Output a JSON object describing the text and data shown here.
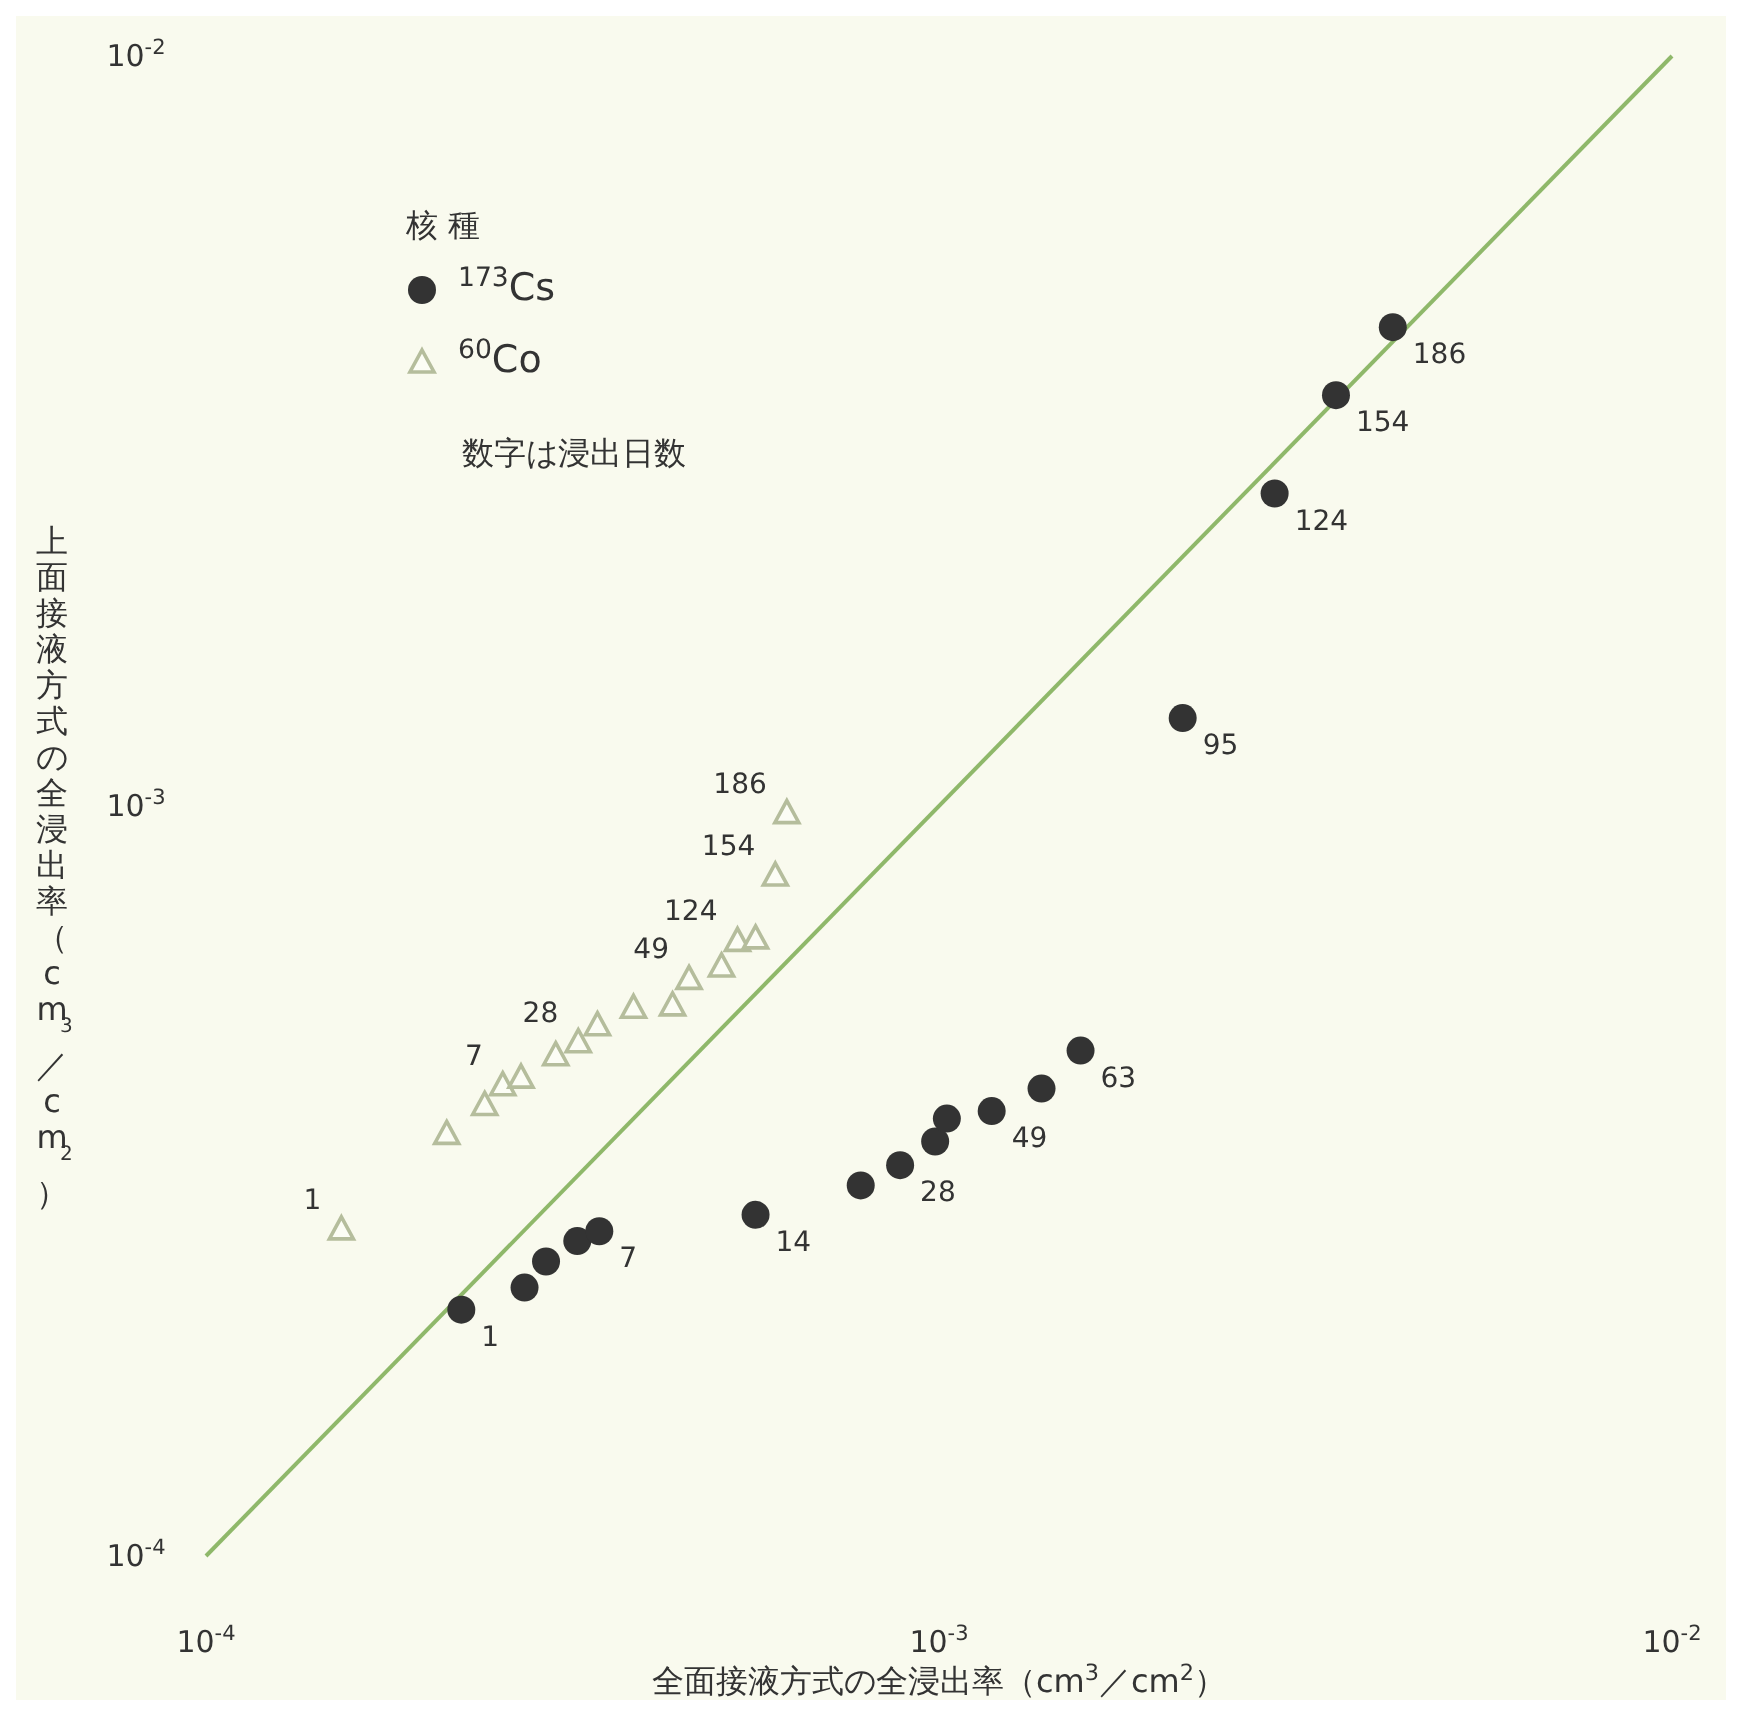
{
  "chart_data": {
    "type": "scatter",
    "log": "xy",
    "xlabel": "全面接液方式の全浸出率（cm$^{3}$／cm$^{2}$）",
    "ylabel": "上面接液方式の全浸出率（cm$^{3}$／cm$^{2}$）",
    "legend_title": "核 種",
    "legend": "top left",
    "xlim": [
      0.0001,
      0.01
    ],
    "ylim": [
      0.0001,
      0.01
    ],
    "xticks": [
      {
        "value": 0.0001,
        "label": "10$^{-4}$"
      },
      {
        "value": 0.001,
        "label": "10$^{-3}$"
      },
      {
        "value": 0.01,
        "label": "10$^{-2}$"
      }
    ],
    "yticks": [
      {
        "value": 0.0001,
        "label": "10$^{-4}$"
      },
      {
        "value": 0.001,
        "label": "10$^{-3}$"
      },
      {
        "value": 0.01,
        "label": "10$^{-2}$"
      }
    ],
    "series": [
      {
        "type": "line",
        "color": "#8fb86a",
        "line_style": "solid",
        "marker": "none",
        "x": [
          0.0001,
          0.01
        ],
        "values": [
          0.0001,
          0.01
        ]
      },
      {
        "name": "$^{173}$Cs",
        "color": "#333333",
        "marker": "circle",
        "x": [
          0.000223,
          0.000272,
          0.000291,
          0.000321,
          0.000344,
          0.000562,
          0.000782,
          0.000885,
          0.000988,
          0.001025,
          0.00118,
          0.00138,
          0.00156,
          0.00215,
          0.00287,
          0.00348,
          0.00416
        ],
        "values": [
          0.000213,
          0.000228,
          0.000247,
          0.000263,
          0.000271,
          0.000285,
          0.000312,
          0.000332,
          0.000357,
          0.000383,
          0.000392,
          0.00042,
          0.000472,
          0.00131,
          0.00261,
          0.00353,
          0.00435
        ]
      },
      {
        "name": "$^{60}$Co",
        "color": "#b5bd9c",
        "marker": "triangle",
        "x": [
          0.000153,
          0.000213,
          0.00024,
          0.000254,
          0.000269,
          0.0003,
          0.000322,
          0.000342,
          0.000383,
          0.000433,
          0.000456,
          0.000505,
          0.000531,
          0.000562,
          0.000598,
          0.00062
        ],
        "values": [
          0.000273,
          0.000366,
          0.0004,
          0.000425,
          0.000435,
          0.000466,
          0.000485,
          0.000511,
          0.000539,
          0.000543,
          0.000589,
          0.000612,
          0.000662,
          0.000667,
          0.000809,
          0.00098
        ]
      }
    ],
    "annotations": [
      "数字は浸出日数",
      {
        "text": "1",
        "x": 0.000223,
        "y": 0.000213
      },
      {
        "text": "7",
        "x": 0.000344,
        "y": 0.000271
      },
      {
        "text": "14",
        "x": 0.000562,
        "y": 0.000285
      },
      {
        "text": "28",
        "x": 0.000885,
        "y": 0.000332
      },
      {
        "text": "49",
        "x": 0.00118,
        "y": 0.000392
      },
      {
        "text": "63",
        "x": 0.00156,
        "y": 0.000472
      },
      {
        "text": "95",
        "x": 0.00215,
        "y": 0.00131
      },
      {
        "text": "124",
        "x": 0.00287,
        "y": 0.00261
      },
      {
        "text": "154",
        "x": 0.00348,
        "y": 0.00353
      },
      {
        "text": "186",
        "x": 0.00416,
        "y": 0.00435
      },
      {
        "text": "1",
        "x": 0.000153,
        "y": 0.000273
      },
      {
        "text": "7",
        "x": 0.000254,
        "y": 0.000425
      },
      {
        "text": "28",
        "x": 0.000322,
        "y": 0.000485
      },
      {
        "text": "49",
        "x": 0.000456,
        "y": 0.000589
      },
      {
        "text": "124",
        "x": 0.000531,
        "y": 0.000662
      },
      {
        "text": "154",
        "x": 0.000598,
        "y": 0.000809
      },
      {
        "text": "186",
        "x": 0.00062,
        "y": 0.00098
      }
    ]
  }
}
